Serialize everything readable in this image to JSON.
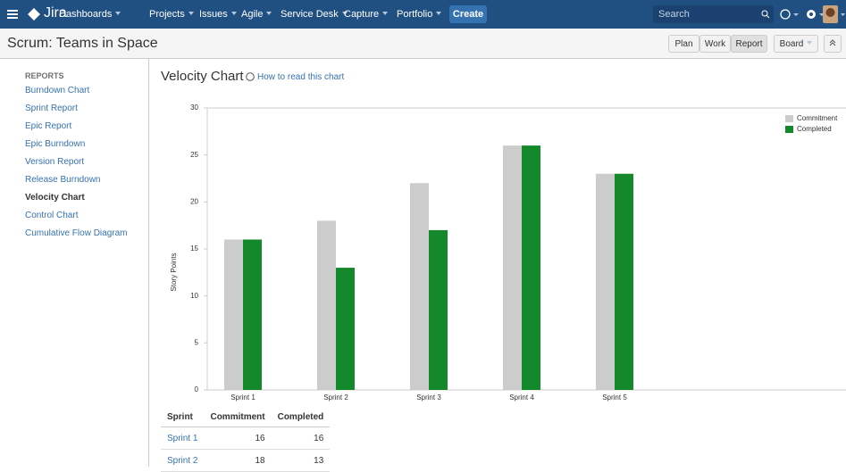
{
  "nav": {
    "logo": "Jira",
    "items": [
      "Dashboards",
      "Projects",
      "Issues",
      "Agile",
      "Service Desk",
      "Capture",
      "Portfolio"
    ],
    "create": "Create",
    "search": "Search"
  },
  "header": {
    "title": "Scrum: Teams in Space",
    "buttons": [
      "Plan",
      "Work",
      "Report"
    ],
    "board": "Board"
  },
  "sidebar": {
    "heading": "REPORTS",
    "items": [
      "Burndown Chart",
      "Sprint Report",
      "Epic Report",
      "Epic Burndown",
      "Version Report",
      "Release Burndown",
      "Velocity Chart",
      "Control Chart",
      "Cumulative Flow Diagram"
    ],
    "active": 6
  },
  "help_link": "How to read this chart",
  "chart_data": {
    "type": "bar",
    "title": "Velocity Chart",
    "y_label": "Story Points",
    "categories": [
      "Sprint 1",
      "Sprint 2",
      "Sprint 3",
      "Sprint 4",
      "Sprint 5"
    ],
    "series": [
      {
        "name": "Commitment",
        "color": "#cccccc",
        "values": [
          16,
          18,
          22,
          26,
          23
        ]
      },
      {
        "name": "Completed",
        "color": "#14892c",
        "values": [
          16,
          13,
          17,
          26,
          23
        ]
      }
    ],
    "ylim": [
      0,
      30
    ],
    "yticks": [
      0,
      5,
      10,
      15,
      20,
      25,
      30
    ],
    "legend": "top-right"
  },
  "table": {
    "headers": [
      "Sprint",
      "Commitment",
      "Completed"
    ],
    "rows": 2
  }
}
